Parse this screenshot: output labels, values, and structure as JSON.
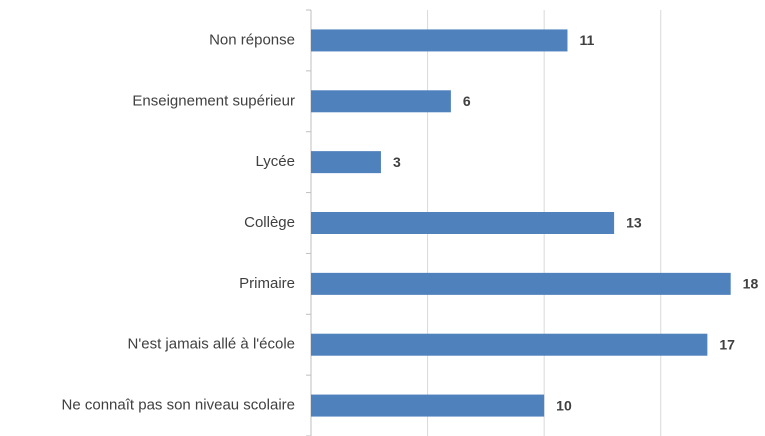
{
  "chart_data": {
    "type": "hbar",
    "categories": [
      "Non réponse",
      "Enseignement supérieur",
      "Lycée",
      "Collège",
      "Primaire",
      "N'est jamais allé à l'école",
      "Ne connaît pas son niveau scolaire"
    ],
    "values": [
      11,
      6,
      3,
      13,
      18,
      17,
      10
    ],
    "color": "#4f81bd",
    "xlim": [
      0,
      19
    ],
    "xticks": [
      0,
      5,
      10,
      15
    ],
    "grid": true
  }
}
